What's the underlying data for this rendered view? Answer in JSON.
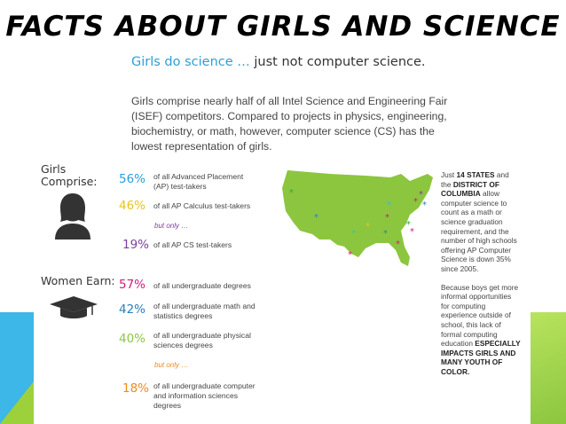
{
  "header": {
    "title": "FACTS ABOUT GIRLS AND SCIENCE",
    "subtitle_part1": "Girls do science …",
    "subtitle_part2": "just not computer science."
  },
  "intro": "Girls comprise nearly half of all Intel Science and Engineering Fair (ISEF) competitors. Compared to projects in physics, engineering, biochemistry, or math, however, computer science (CS) has the lowest representation of girls.",
  "girls_section": {
    "label_line1": "Girls",
    "label_line2": "Comprise:",
    "icon": "woman-icon",
    "stats": [
      {
        "pct": "56%",
        "desc": "of all Advanced Placement (AP) test-takers",
        "color": "#2b9fd8"
      },
      {
        "pct": "46%",
        "desc": "of all AP Calculus test-takers",
        "color": "#e8c41a"
      },
      {
        "pct": "19%",
        "desc": "of all AP CS test-takers",
        "color": "#7b3fa0"
      }
    ],
    "but_only": "but only …",
    "but_only_color": "#7b3fa0"
  },
  "women_section": {
    "label": "Women Earn:",
    "icon": "graduation-cap-icon",
    "stats": [
      {
        "pct": "57%",
        "desc": "of all undergraduate degrees",
        "color": "#d4197a"
      },
      {
        "pct": "42%",
        "desc": "of all undergraduate math and statistics degrees",
        "color": "#2b7fb8"
      },
      {
        "pct": "40%",
        "desc": "of all undergraduate physical sciences degrees",
        "color": "#8cc63f"
      },
      {
        "pct": "18%",
        "desc": "of all undergraduate computer and information sciences degrees",
        "color": "#f08a1c"
      }
    ],
    "but_only": "but only …",
    "but_only_color": "#f08a1c"
  },
  "map": {
    "icon": "usa-map-icon",
    "fill_color": "#8cc63f"
  },
  "side_text": {
    "p1_a": "Just ",
    "p1_b": "14 STATES",
    "p1_c": " and the ",
    "p1_d": "DISTRICT OF COLUMBIA",
    "p1_e": " allow computer science to count as a math or science graduation requirement, and the number of high schools offering AP Computer Science is down 35% since 2005.",
    "p2_a": "Because boys get more informal opportunities for computing experience outside of school, this lack of formal computing education ",
    "p2_b": "ESPECIALLY IMPACTS GIRLS AND MANY YOUTH OF COLOR."
  }
}
